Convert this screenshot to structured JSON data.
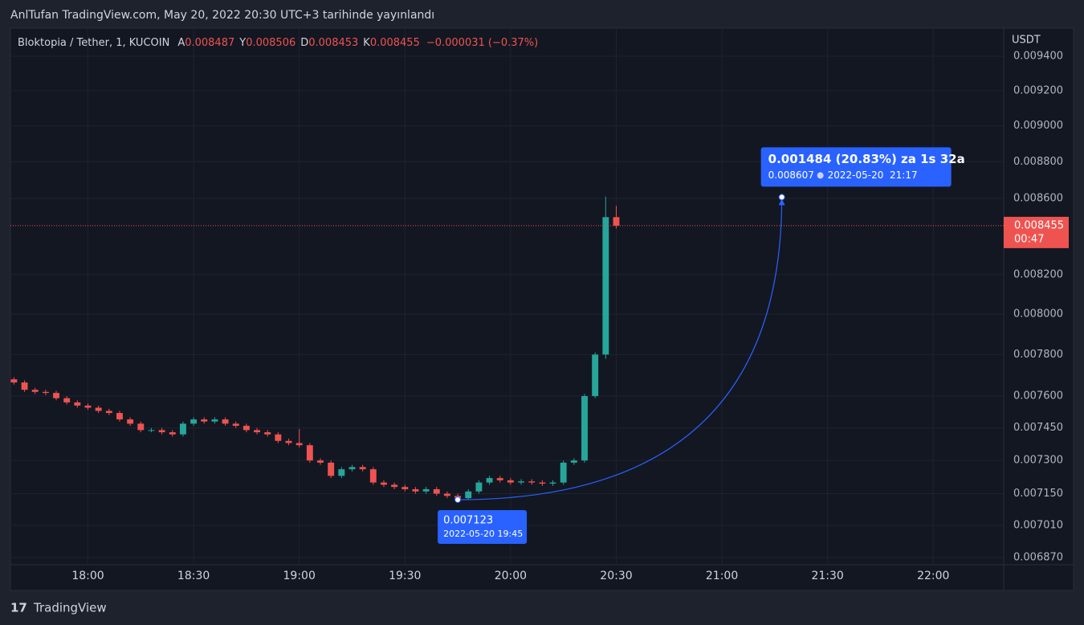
{
  "header": {
    "title": "AnlTufan TradingView.com, May 20, 2022 20:30 UTC+3 tarihinde yayınlandı"
  },
  "chart_data": {
    "type": "candlestick",
    "symbol": "Bloktopia / Tether, 1, KUCOIN",
    "currency": "USDT",
    "legend": [
      {
        "label": "A",
        "value": 0.008487
      },
      {
        "label": "Y",
        "value": 0.008506
      },
      {
        "label": "D",
        "value": 0.008453
      },
      {
        "label": "K",
        "value": 0.008455
      }
    ],
    "change": "−0.000031 (−0.37%)",
    "countdown": "00:47",
    "x": [
      1059,
      1062,
      1065,
      1068,
      1071,
      1074,
      1077,
      1080,
      1083,
      1086,
      1089,
      1092,
      1095,
      1098,
      1101,
      1104,
      1107,
      1110,
      1113,
      1116,
      1119,
      1122,
      1125,
      1128,
      1131,
      1134,
      1137,
      1140,
      1143,
      1146,
      1149,
      1152,
      1155,
      1158,
      1161,
      1164,
      1167,
      1170,
      1173,
      1176,
      1179,
      1182,
      1185,
      1188,
      1191,
      1194,
      1197,
      1200,
      1203,
      1206,
      1209,
      1212,
      1215,
      1218,
      1221,
      1224,
      1227,
      1230
    ],
    "open": [
      0.00768,
      0.007665,
      0.00763,
      0.00762,
      0.007615,
      0.00759,
      0.00757,
      0.007555,
      0.007545,
      0.00753,
      0.00752,
      0.00749,
      0.00747,
      0.00744,
      0.00744,
      0.00743,
      0.00742,
      0.00747,
      0.00749,
      0.00748,
      0.00749,
      0.00747,
      0.00746,
      0.00744,
      0.00743,
      0.00742,
      0.00739,
      0.00738,
      0.00737,
      0.0073,
      0.00729,
      0.00723,
      0.00726,
      0.00727,
      0.00726,
      0.0072,
      0.00719,
      0.00718,
      0.00717,
      0.00716,
      0.00717,
      0.00715,
      0.00714,
      0.00713,
      0.00716,
      0.0072,
      0.00722,
      0.00721,
      0.0072,
      0.007205,
      0.0072,
      0.007195,
      0.0072,
      0.00729,
      0.0073,
      0.0076,
      0.0078,
      0.0085
    ],
    "high": [
      0.00769,
      0.007675,
      0.00764,
      0.00763,
      0.007625,
      0.0076,
      0.00758,
      0.007565,
      0.007555,
      0.00754,
      0.00753,
      0.0075,
      0.00748,
      0.00745,
      0.00745,
      0.00744,
      0.00748,
      0.0075,
      0.0075,
      0.0075,
      0.0075,
      0.00748,
      0.00747,
      0.00745,
      0.00744,
      0.00743,
      0.0074,
      0.007445,
      0.00738,
      0.00731,
      0.0073,
      0.00727,
      0.00728,
      0.00728,
      0.00727,
      0.00721,
      0.0072,
      0.00719,
      0.00718,
      0.00718,
      0.00718,
      0.00716,
      0.00715,
      0.00717,
      0.00721,
      0.00723,
      0.00723,
      0.00722,
      0.007215,
      0.007215,
      0.00721,
      0.00721,
      0.0073,
      0.00731,
      0.00761,
      0.00781,
      0.00861,
      0.00856
    ],
    "low": [
      0.007655,
      0.00762,
      0.00761,
      0.007605,
      0.00758,
      0.00756,
      0.007545,
      0.007535,
      0.00752,
      0.00751,
      0.00748,
      0.00746,
      0.00743,
      0.00743,
      0.00742,
      0.00741,
      0.00741,
      0.00746,
      0.00747,
      0.00747,
      0.00746,
      0.00745,
      0.00743,
      0.00742,
      0.00741,
      0.00738,
      0.00737,
      0.00736,
      0.00729,
      0.00728,
      0.00722,
      0.00722,
      0.00725,
      0.00725,
      0.00719,
      0.00718,
      0.00717,
      0.00716,
      0.00715,
      0.00715,
      0.00714,
      0.00713,
      0.007123,
      0.007125,
      0.00715,
      0.00719,
      0.0072,
      0.00719,
      0.00719,
      0.00719,
      0.007185,
      0.007185,
      0.00719,
      0.00728,
      0.00729,
      0.00759,
      0.00778,
      0.00844
    ],
    "close": [
      0.007665,
      0.00763,
      0.00762,
      0.007615,
      0.00759,
      0.00757,
      0.007555,
      0.007545,
      0.00753,
      0.00752,
      0.00749,
      0.00747,
      0.00744,
      0.00744,
      0.00743,
      0.00742,
      0.00747,
      0.00749,
      0.00748,
      0.00749,
      0.00747,
      0.00746,
      0.00744,
      0.00743,
      0.00742,
      0.00739,
      0.00738,
      0.00737,
      0.0073,
      0.00729,
      0.00723,
      0.00726,
      0.00727,
      0.00726,
      0.0072,
      0.00719,
      0.00718,
      0.00717,
      0.00716,
      0.00717,
      0.00715,
      0.00714,
      0.00713,
      0.00716,
      0.0072,
      0.00722,
      0.00721,
      0.0072,
      0.007205,
      0.0072,
      0.007195,
      0.0072,
      0.00729,
      0.0073,
      0.0076,
      0.0078,
      0.0085,
      0.008455
    ],
    "up_color": "#26a69a",
    "down_color": "#ef5350",
    "log_scale": true,
    "grid": true,
    "xlim": [
      1058,
      1340
    ],
    "xticks": [
      {
        "value": 1080,
        "label": "18:00"
      },
      {
        "value": 1110,
        "label": "18:30"
      },
      {
        "value": 1140,
        "label": "19:00"
      },
      {
        "value": 1170,
        "label": "19:30"
      },
      {
        "value": 1200,
        "label": "20:00"
      },
      {
        "value": 1230,
        "label": "20:30"
      },
      {
        "value": 1260,
        "label": "21:00"
      },
      {
        "value": 1290,
        "label": "21:30"
      },
      {
        "value": 1320,
        "label": "22:00"
      }
    ],
    "ylim": [
      0.006839,
      0.009567
    ],
    "yticks": [
      {
        "value": 0.0094,
        "label": "0.009400"
      },
      {
        "value": 0.0092,
        "label": "0.009200"
      },
      {
        "value": 0.009,
        "label": "0.009000"
      },
      {
        "value": 0.0088,
        "label": "0.008800"
      },
      {
        "value": 0.0086,
        "label": "0.008600"
      },
      {
        "value": 0.0082,
        "label": "0.008200"
      },
      {
        "value": 0.008,
        "label": "0.008000"
      },
      {
        "value": 0.0078,
        "label": "0.007800"
      },
      {
        "value": 0.0076,
        "label": "0.007600"
      },
      {
        "value": 0.00745,
        "label": "0.007450"
      },
      {
        "value": 0.0073,
        "label": "0.007300"
      },
      {
        "value": 0.00715,
        "label": "0.007150"
      },
      {
        "value": 0.00701,
        "label": "0.007010"
      },
      {
        "value": 0.00687,
        "label": "0.006870"
      }
    ],
    "measure": {
      "text": "0.001484 (20.83%) za 1s 32a",
      "start_price": 0.007123,
      "start_time": "2022-05-20 19:45",
      "end_price": 0.008607,
      "end_time": "2022-05-20  21:17",
      "color": "#2962ff"
    }
  },
  "footer": {
    "brand": "TradingView"
  }
}
